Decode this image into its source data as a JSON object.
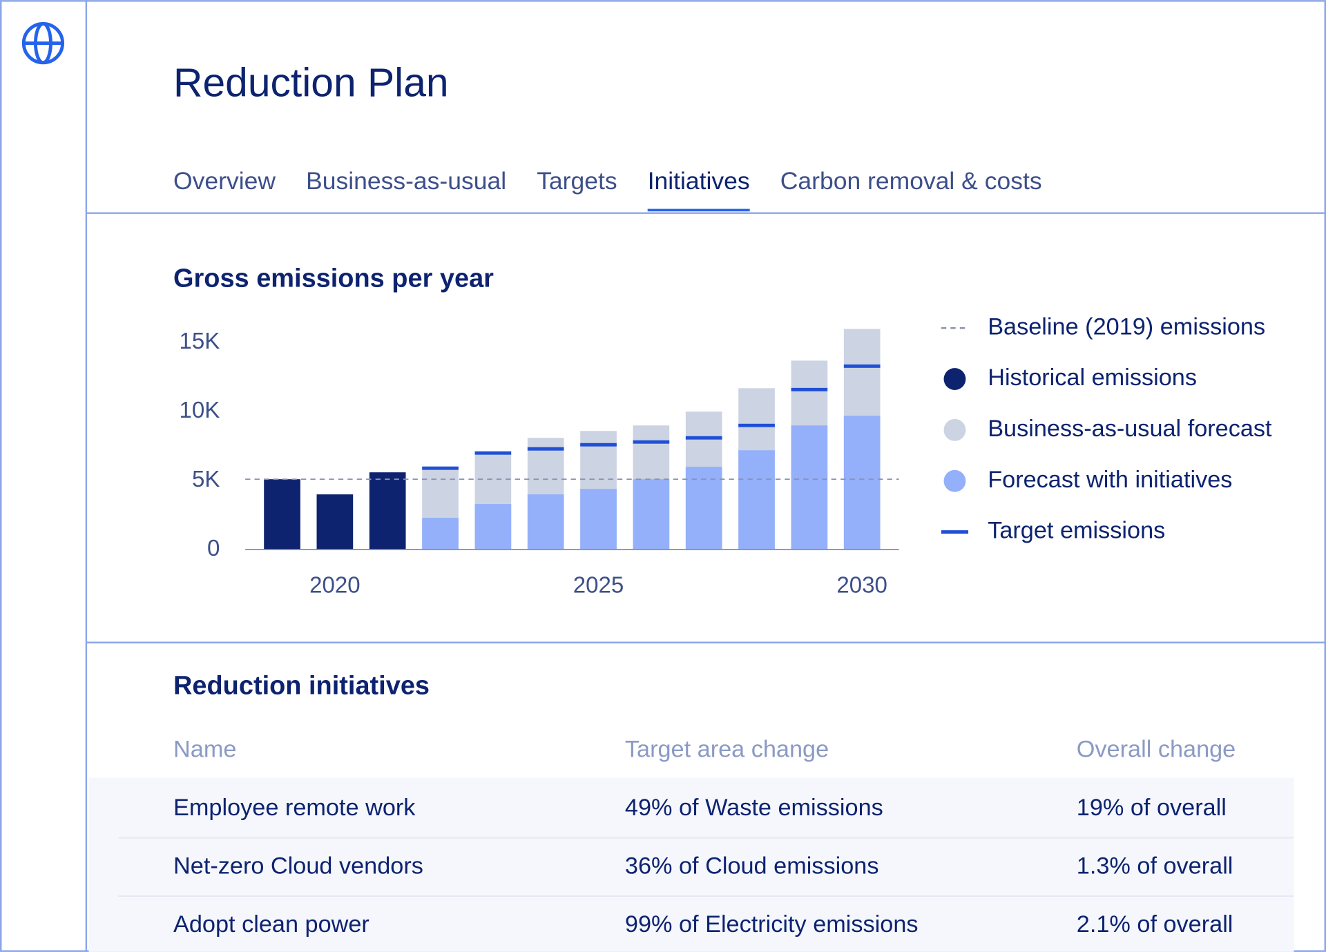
{
  "header": {
    "title": "Reduction Plan",
    "tabs": [
      "Overview",
      "Business-as-usual",
      "Targets",
      "Initiatives",
      "Carbon removal & costs"
    ],
    "active_tab": 3
  },
  "chart_data": {
    "type": "bar",
    "title": "Gross emissions per year",
    "x": [
      2019,
      2020,
      2021,
      2022,
      2023,
      2024,
      2025,
      2026,
      2027,
      2028,
      2029,
      2030
    ],
    "xlim": [
      2018.3,
      2030.7
    ],
    "xticks": [
      2020,
      2025,
      2030
    ],
    "ylim": [
      0,
      16000
    ],
    "yticks": [
      0,
      {
        "value": 5000,
        "label": "5K"
      },
      {
        "value": 10000,
        "label": "10K"
      },
      {
        "value": 15000,
        "label": "15K"
      }
    ],
    "baseline": {
      "name": "Baseline (2019) emissions",
      "value": 5100,
      "color": "#8a93b3"
    },
    "series": [
      {
        "name": "Historical emissions",
        "style": "bar",
        "color": "#0d2370",
        "values": [
          5100,
          4000,
          5600,
          null,
          null,
          null,
          null,
          null,
          null,
          null,
          null,
          null
        ]
      },
      {
        "name": "Business-as-usual forecast",
        "style": "bar",
        "color": "#ccd3e2",
        "values": [
          null,
          null,
          null,
          5900,
          7000,
          8100,
          8600,
          9000,
          10000,
          11700,
          13700,
          16000
        ]
      },
      {
        "name": "Forecast with initiatives",
        "style": "bar",
        "color": "#94b0fb",
        "values": [
          null,
          null,
          null,
          2300,
          3300,
          4000,
          4400,
          5100,
          6000,
          7200,
          9000,
          9700
        ]
      },
      {
        "name": "Target emissions",
        "style": "dash",
        "color": "#1f4fd6",
        "values": [
          null,
          null,
          null,
          5900,
          7000,
          7300,
          7600,
          7800,
          8100,
          9000,
          11600,
          13300
        ]
      }
    ]
  },
  "table": {
    "title": "Reduction initiatives",
    "columns": [
      "Name",
      "Target area change",
      "Overall change"
    ],
    "rows": [
      [
        "Employee remote work",
        "49% of Waste emissions",
        "19% of overall"
      ],
      [
        "Net-zero Cloud vendors",
        "36% of Cloud emissions",
        "1.3% of overall"
      ],
      [
        "Adopt clean power",
        "99% of Electricity emissions",
        "2.1% of overall"
      ]
    ]
  }
}
